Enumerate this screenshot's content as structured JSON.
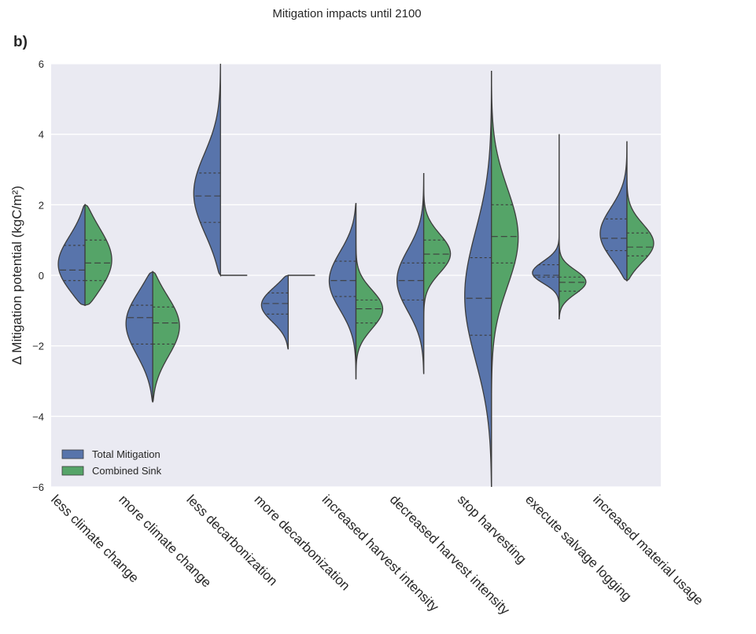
{
  "chart_data": {
    "type": "violin",
    "title": "Mitigation impacts until 2100",
    "panel_label": "b)",
    "xlabel": "",
    "ylabel": "Δ Mitigation potential (kgC/m²)",
    "ylim": [
      -6,
      6
    ],
    "yticks": [
      -6,
      -4,
      -2,
      0,
      2,
      4,
      6
    ],
    "grid": true,
    "legend_position": "lower-left",
    "colors": {
      "Total Mitigation": "#5874ab",
      "Combined Sink": "#55a468",
      "background": "#eaeaf2",
      "outline": "#3d3d3d"
    },
    "categories": [
      "less climate change",
      "more climate change",
      "less decarbonization",
      "more decarbonization",
      "increased harvest intensity",
      "decreased harvest intensity",
      "stop harvesting",
      "execute salvage logging",
      "increased material usage"
    ],
    "series": [
      {
        "name": "Total Mitigation",
        "side": "left",
        "violins": [
          {
            "min": -0.85,
            "max": 2.0,
            "q1": -0.15,
            "median": 0.15,
            "q3": 0.85
          },
          {
            "min": -3.6,
            "max": 0.1,
            "q1": -1.95,
            "median": -1.2,
            "q3": -0.85
          },
          {
            "min": 0.0,
            "max": 6.0,
            "q1": 1.5,
            "median": 2.25,
            "q3": 2.9
          },
          {
            "min": -2.1,
            "max": 0.0,
            "q1": -1.1,
            "median": -0.8,
            "q3": -0.5
          },
          {
            "min": -2.95,
            "max": 2.05,
            "q1": -0.6,
            "median": -0.15,
            "q3": 0.4
          },
          {
            "min": -2.8,
            "max": 2.9,
            "q1": -0.7,
            "median": -0.15,
            "q3": 0.35
          },
          {
            "min": -6.0,
            "max": 5.8,
            "q1": -1.7,
            "median": -0.65,
            "q3": 0.5
          },
          {
            "min": -1.25,
            "max": 4.0,
            "q1": -0.05,
            "median": 0.0,
            "q3": 0.3
          },
          {
            "min": -0.15,
            "max": 3.8,
            "q1": 0.7,
            "median": 1.05,
            "q3": 1.6
          }
        ]
      },
      {
        "name": "Combined Sink",
        "side": "right",
        "violins": [
          {
            "min": -0.85,
            "max": 2.0,
            "q1": -0.15,
            "median": 0.35,
            "q3": 1.0
          },
          {
            "min": -3.6,
            "max": 0.1,
            "q1": -1.95,
            "median": -1.35,
            "q3": -0.9
          },
          {
            "min": 0.0,
            "max": 0.0,
            "q1": 0.0,
            "median": 0.0,
            "q3": 0.0
          },
          {
            "min": 0.0,
            "max": 0.0,
            "q1": 0.0,
            "median": 0.0,
            "q3": 0.0
          },
          {
            "min": -2.95,
            "max": 2.05,
            "q1": -1.35,
            "median": -0.95,
            "q3": -0.7
          },
          {
            "min": -2.8,
            "max": 2.9,
            "q1": 0.35,
            "median": 0.6,
            "q3": 1.0
          },
          {
            "min": -6.0,
            "max": 5.8,
            "q1": 0.35,
            "median": 1.1,
            "q3": 2.0
          },
          {
            "min": -1.25,
            "max": 4.0,
            "q1": -0.45,
            "median": -0.2,
            "q3": -0.05
          },
          {
            "min": -0.15,
            "max": 3.8,
            "q1": 0.55,
            "median": 0.8,
            "q3": 1.2
          }
        ]
      }
    ]
  }
}
